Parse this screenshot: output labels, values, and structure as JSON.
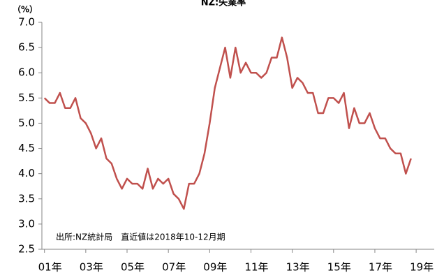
{
  "chart_data": {
    "type": "line",
    "title": "NZ:失業率",
    "y_label": "（%）",
    "annotation": "出所:NZ統計局　直近値は2018年10-12月期",
    "categories": [
      "01年",
      null,
      null,
      null,
      null,
      null,
      null,
      null,
      "03年",
      null,
      null,
      null,
      null,
      null,
      null,
      null,
      "05年",
      null,
      null,
      null,
      null,
      null,
      null,
      null,
      "07年",
      null,
      null,
      null,
      null,
      null,
      null,
      null,
      "09年",
      null,
      null,
      null,
      null,
      null,
      null,
      null,
      "11年",
      null,
      null,
      null,
      null,
      null,
      null,
      null,
      "13年",
      null,
      null,
      null,
      null,
      null,
      null,
      null,
      "15年",
      null,
      null,
      null,
      null,
      null,
      null,
      null,
      "17年",
      null,
      null,
      null,
      null,
      null,
      null,
      null,
      "19年",
      null,
      null,
      null
    ],
    "series": [
      {
        "name": "失業率",
        "color": "#c0504d",
        "values": [
          5.5,
          5.4,
          5.4,
          5.6,
          5.3,
          5.3,
          5.5,
          5.1,
          5.0,
          4.8,
          4.5,
          4.7,
          4.3,
          4.2,
          3.9,
          3.7,
          3.9,
          3.8,
          3.8,
          3.7,
          4.1,
          3.7,
          3.9,
          3.8,
          3.9,
          3.6,
          3.5,
          3.3,
          3.8,
          3.8,
          4.0,
          4.4,
          5.0,
          5.7,
          6.1,
          6.5,
          5.9,
          6.5,
          6.0,
          6.2,
          6.0,
          6.0,
          5.9,
          6.0,
          6.3,
          6.3,
          6.7,
          6.3,
          5.7,
          5.9,
          5.8,
          5.6,
          5.6,
          5.2,
          5.2,
          5.5,
          5.5,
          5.4,
          5.6,
          4.9,
          5.3,
          5.0,
          5.0,
          5.2,
          4.9,
          4.7,
          4.7,
          4.5,
          4.4,
          4.4,
          4.0,
          4.3,
          null,
          null,
          null,
          null
        ]
      }
    ],
    "ylim": [
      2.5,
      7.0
    ],
    "yticks": [
      2.5,
      {
        "value": 3,
        "label": "3.0"
      },
      3.5,
      {
        "value": 4,
        "label": "4.0"
      },
      4.5,
      {
        "value": 5,
        "label": "5.0"
      },
      5.5,
      {
        "value": 6,
        "label": "6.0"
      },
      6.5,
      {
        "value": 7,
        "label": "7.0"
      }
    ],
    "grid": false
  }
}
